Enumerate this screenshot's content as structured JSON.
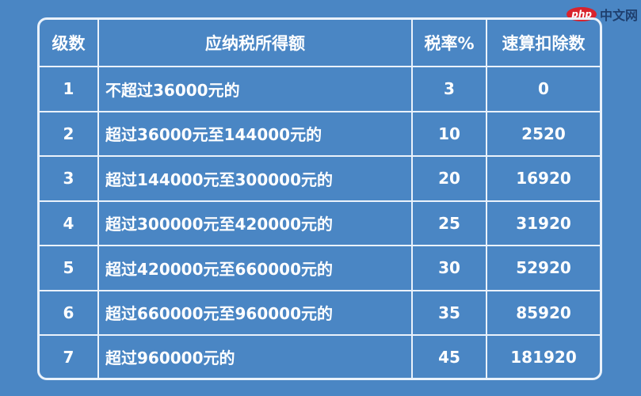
{
  "watermark": {
    "logo": "php",
    "text": "中文网"
  },
  "colors": {
    "background": "#4a86c4",
    "lines": "#eaf2fb"
  },
  "table": {
    "headers": [
      "级数",
      "应纳税所得额",
      "税率%",
      "速算扣除数"
    ],
    "rows": [
      [
        "1",
        "不超过36000元的",
        "3",
        "0"
      ],
      [
        "2",
        "超过36000元至144000元的",
        "10",
        "2520"
      ],
      [
        "3",
        "超过144000元至300000元的",
        "20",
        "16920"
      ],
      [
        "4",
        "超过300000元至420000元的",
        "25",
        "31920"
      ],
      [
        "5",
        "超过420000元至660000元的",
        "30",
        "52920"
      ],
      [
        "6",
        "超过660000元至960000元的",
        "35",
        "85920"
      ],
      [
        "7",
        "超过960000元的",
        "45",
        "181920"
      ]
    ]
  }
}
